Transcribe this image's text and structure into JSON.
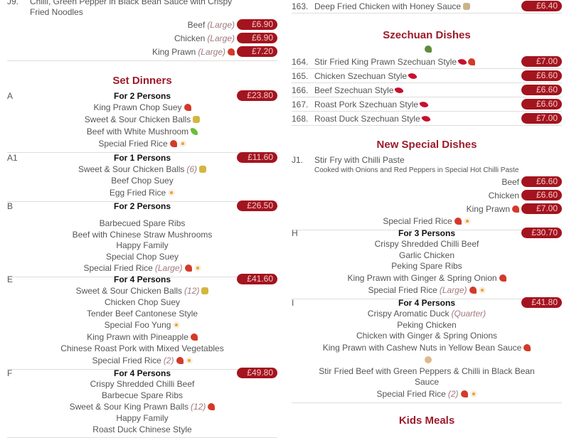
{
  "left": {
    "j9": {
      "code": "J9.",
      "description_lines": [
        "Chilli, Green Pepper in Black Bean Sauce with Crispy",
        "Fried Noodles"
      ],
      "variants": [
        {
          "name": "Beef",
          "note": "(Large)",
          "icons": [],
          "price": "£6.90"
        },
        {
          "name": "Chicken",
          "note": "(Large)",
          "icons": [],
          "price": "£6.90"
        },
        {
          "name": "King Prawn",
          "note": "(Large)",
          "icons": [
            "prawn"
          ],
          "price": "£7.20"
        }
      ]
    },
    "set_dinners_heading": "Set Dinners",
    "sets": [
      {
        "code": "A",
        "persons": "For 2 Persons",
        "price": "£23.80",
        "items": [
          {
            "name": "King Prawn Chop Suey",
            "icons": [
              "prawn"
            ]
          },
          {
            "name": "Sweet & Sour Chicken Balls",
            "icons": [
              "balls"
            ]
          },
          {
            "name": "Beef with White Mushroom",
            "icons": [
              "cucumber"
            ]
          },
          {
            "name": "Special Fried Rice",
            "icons": [
              "prawn",
              "egg"
            ]
          }
        ]
      },
      {
        "code": "A1",
        "persons": "For 1 Persons",
        "price": "£11.60",
        "items": [
          {
            "name": "Sweet & Sour Chicken Balls",
            "note": "(6)",
            "icons": [
              "balls"
            ]
          },
          {
            "name": "Beef Chop Suey",
            "icons": []
          },
          {
            "name": "Egg Fried Rice",
            "icons": [
              "egg"
            ]
          }
        ]
      },
      {
        "code": "B",
        "persons": "For 2 Persons",
        "price": "£26.50",
        "items": [
          {
            "name": "",
            "icons": []
          },
          {
            "name": "Barbecued Spare Ribs",
            "icons": []
          },
          {
            "name": "Beef with Chinese Straw Mushrooms",
            "icons": []
          },
          {
            "name": "Happy Family",
            "icons": []
          },
          {
            "name": "Special Chop Suey",
            "icons": []
          },
          {
            "name": "Special Fried Rice",
            "note": "(Large)",
            "icons": [
              "prawn",
              "egg"
            ]
          }
        ]
      },
      {
        "code": "E",
        "persons": "For 4 Persons",
        "price": "£41.60",
        "items": [
          {
            "name": "Sweet & Sour Chicken Balls",
            "note": "(12)",
            "icons": [
              "balls"
            ]
          },
          {
            "name": "Chicken Chop Suey",
            "icons": []
          },
          {
            "name": "Tender Beef Cantonese Style",
            "icons": []
          },
          {
            "name": "Special Foo Yung",
            "icons": [
              "egg"
            ]
          },
          {
            "name": "King Prawn with Pineapple",
            "icons": [
              "prawn"
            ]
          },
          {
            "name": "Chinese Roast Pork with Mixed Vegetables",
            "icons": []
          },
          {
            "name": "Special Fried Rice",
            "note": "(2)",
            "icons": [
              "prawn",
              "egg"
            ]
          }
        ]
      },
      {
        "code": "F",
        "persons": "For 4 Persons",
        "price": "£49.80",
        "items": [
          {
            "name": "Crispy Shredded Chilli Beef",
            "icons": []
          },
          {
            "name": "Barbecue Spare Ribs",
            "icons": []
          },
          {
            "name": "Sweet & Sour King Prawn Balls",
            "note": "(12)",
            "icons": [
              "prawn"
            ]
          },
          {
            "name": "Happy Family",
            "icons": []
          },
          {
            "name": "Roast Duck Chinese Style",
            "icons": []
          }
        ]
      }
    ]
  },
  "right": {
    "dish_163": {
      "number": "163.",
      "name": "Deep Fried Chicken with Honey Sauce",
      "icons": [
        "honey"
      ],
      "price": "£6.40"
    },
    "szechuan_heading": "Szechuan Dishes",
    "szechuan_icon": "herb",
    "szechuan": [
      {
        "number": "164.",
        "name": "Stir Fried King Prawn Szechuan Style",
        "icons": [
          "chilli",
          "prawn"
        ],
        "price": "£7.00"
      },
      {
        "number": "165.",
        "name": "Chicken Szechuan Style",
        "icons": [
          "chilli"
        ],
        "price": "£6.60"
      },
      {
        "number": "166.",
        "name": "Beef Szechuan Style",
        "icons": [
          "chilli"
        ],
        "price": "£6.60"
      },
      {
        "number": "167.",
        "name": "Roast Pork Szechuan Style",
        "icons": [
          "chilli"
        ],
        "price": "£6.60"
      },
      {
        "number": "168.",
        "name": "Roast Duck Szechuan Style",
        "icons": [
          "chilli"
        ],
        "price": "£7.00"
      }
    ],
    "new_special_heading": "New Special Dishes",
    "j1": {
      "code": "J1.",
      "name": "Stir Fry with Chilli Paste",
      "description": "Cooked with Onions and Red Peppers in Special Hot Chilli Paste",
      "variants": [
        {
          "name": "Beef",
          "icons": [],
          "price": "£6.60"
        },
        {
          "name": "Chicken",
          "icons": [],
          "price": "£6.60"
        },
        {
          "name": "King Prawn",
          "icons": [
            "prawn"
          ],
          "price": "£7.00"
        }
      ],
      "items": [
        {
          "name": "Special Fried Rice",
          "icons": [
            "prawn",
            "egg"
          ]
        }
      ]
    },
    "sets": [
      {
        "code": "H",
        "persons": "For 3 Persons",
        "price": "£30.70",
        "items": [
          {
            "name": "Crispy Shredded Chilli Beef",
            "icons": []
          },
          {
            "name": "Garlic Chicken",
            "icons": []
          },
          {
            "name": "Peking Spare Ribs",
            "icons": []
          },
          {
            "name": "King Prawn with Ginger & Spring Onion",
            "icons": [
              "prawn"
            ]
          },
          {
            "name": "Special Fried Rice",
            "note": "(Large)",
            "icons": [
              "prawn",
              "egg"
            ]
          }
        ]
      },
      {
        "code": "I",
        "persons": "For 4 Persons",
        "price": "£41.80",
        "items": [
          {
            "name": "Crispy Aromatic Duck",
            "note": "(Quarter)",
            "icons": []
          },
          {
            "name": "Peking Chicken",
            "icons": []
          },
          {
            "name": "Chicken with Ginger & Spring Onions",
            "icons": []
          },
          {
            "name": "King Prawn with Cashew Nuts in Yellow Bean Sauce",
            "icons": [
              "prawn"
            ]
          },
          {
            "name": "",
            "icons": [
              "nut"
            ]
          },
          {
            "name": "Stir Fried Beef with Green Peppers & Chilli in Black Bean",
            "icons": []
          },
          {
            "name": "Sauce",
            "icons": []
          },
          {
            "name": "Special Fried Rice",
            "note": "(2)",
            "icons": [
              "prawn",
              "egg"
            ]
          }
        ]
      }
    ],
    "kids_heading": "Kids Meals"
  },
  "colors": {
    "accent": "#9b1b2a",
    "price_pill": "#a3141f",
    "price_text": "#f2caca"
  }
}
